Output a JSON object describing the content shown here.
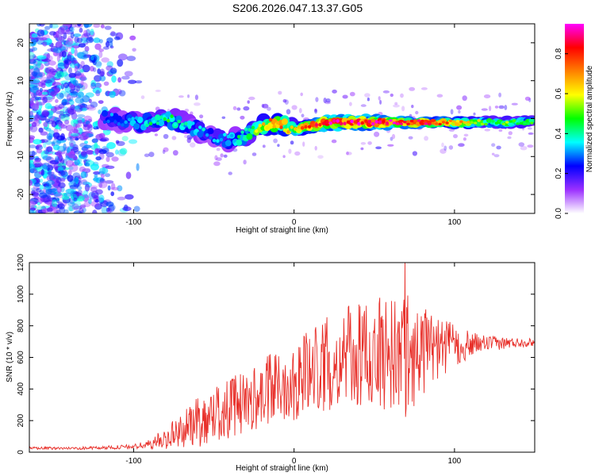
{
  "title": "S206.2026.047.13.37.G05",
  "chart_data": [
    {
      "type": "heatmap",
      "xlabel": "Height of straight line (km)",
      "ylabel": "Frequency (Hz)",
      "xlim": [
        -165,
        150
      ],
      "ylim": [
        -25,
        25
      ],
      "x_ticks": [
        -100,
        0,
        100
      ],
      "y_ticks": [
        -20,
        -10,
        0,
        10,
        20
      ],
      "colorbar": {
        "label": "Normalized spectral amplitude",
        "range": [
          0.0,
          0.95
        ],
        "ticks": [
          0.0,
          0.2,
          0.4,
          0.6,
          0.8
        ],
        "colors": [
          "#ffffff",
          "#9b30ff",
          "#0000ff",
          "#00ffff",
          "#00ff00",
          "#ffff00",
          "#ff8000",
          "#ff0000",
          "#ff00ff"
        ]
      },
      "ridge": {
        "x": [
          -115,
          -100,
          -90,
          -80,
          -70,
          -60,
          -50,
          -40,
          -30,
          -20,
          -10,
          0,
          10,
          20,
          30,
          40,
          50,
          60,
          70,
          80,
          90,
          100,
          110,
          120,
          130,
          140,
          150
        ],
        "freq": [
          0,
          -1,
          -1,
          0,
          -1,
          -3,
          -5,
          -6,
          -4,
          -2,
          -1,
          -3,
          -2,
          -1,
          -1,
          -1,
          -1,
          -1,
          -1,
          -1,
          -1,
          -1,
          -1,
          -1,
          -1,
          -1,
          -1
        ],
        "amplitude": [
          0.3,
          0.35,
          0.4,
          0.45,
          0.4,
          0.35,
          0.3,
          0.35,
          0.45,
          0.6,
          0.75,
          0.55,
          0.8,
          0.85,
          0.9,
          0.9,
          0.85,
          0.9,
          0.8,
          0.85,
          0.8,
          0.7,
          0.6,
          0.5,
          0.5,
          0.5,
          0.5
        ]
      }
    },
    {
      "type": "line",
      "xlabel": "Height of straight line (km)",
      "ylabel": "SNR (10 * v/v)",
      "xlim": [
        -165,
        150
      ],
      "ylim": [
        0,
        1200
      ],
      "x_ticks": [
        -100,
        0,
        100
      ],
      "y_ticks": [
        0,
        200,
        400,
        600,
        800,
        1000,
        1200
      ],
      "color": "#e8302a",
      "envelope": {
        "x": [
          -165,
          -140,
          -120,
          -100,
          -90,
          -80,
          -70,
          -60,
          -50,
          -40,
          -30,
          -20,
          -10,
          0,
          10,
          20,
          30,
          40,
          50,
          60,
          70,
          80,
          90,
          100,
          110,
          120,
          130,
          140,
          150
        ],
        "mean": [
          25,
          25,
          28,
          35,
          50,
          90,
          140,
          190,
          240,
          280,
          320,
          360,
          420,
          460,
          520,
          560,
          600,
          600,
          620,
          630,
          620,
          640,
          660,
          670,
          680,
          690,
          690,
          695,
          695
        ],
        "spread": [
          8,
          8,
          10,
          15,
          30,
          70,
          110,
          160,
          180,
          200,
          200,
          220,
          240,
          260,
          280,
          300,
          320,
          340,
          360,
          380,
          400,
          300,
          200,
          140,
          80,
          50,
          40,
          30,
          25
        ]
      },
      "peak": {
        "x": 69,
        "y": 1210
      }
    }
  ]
}
